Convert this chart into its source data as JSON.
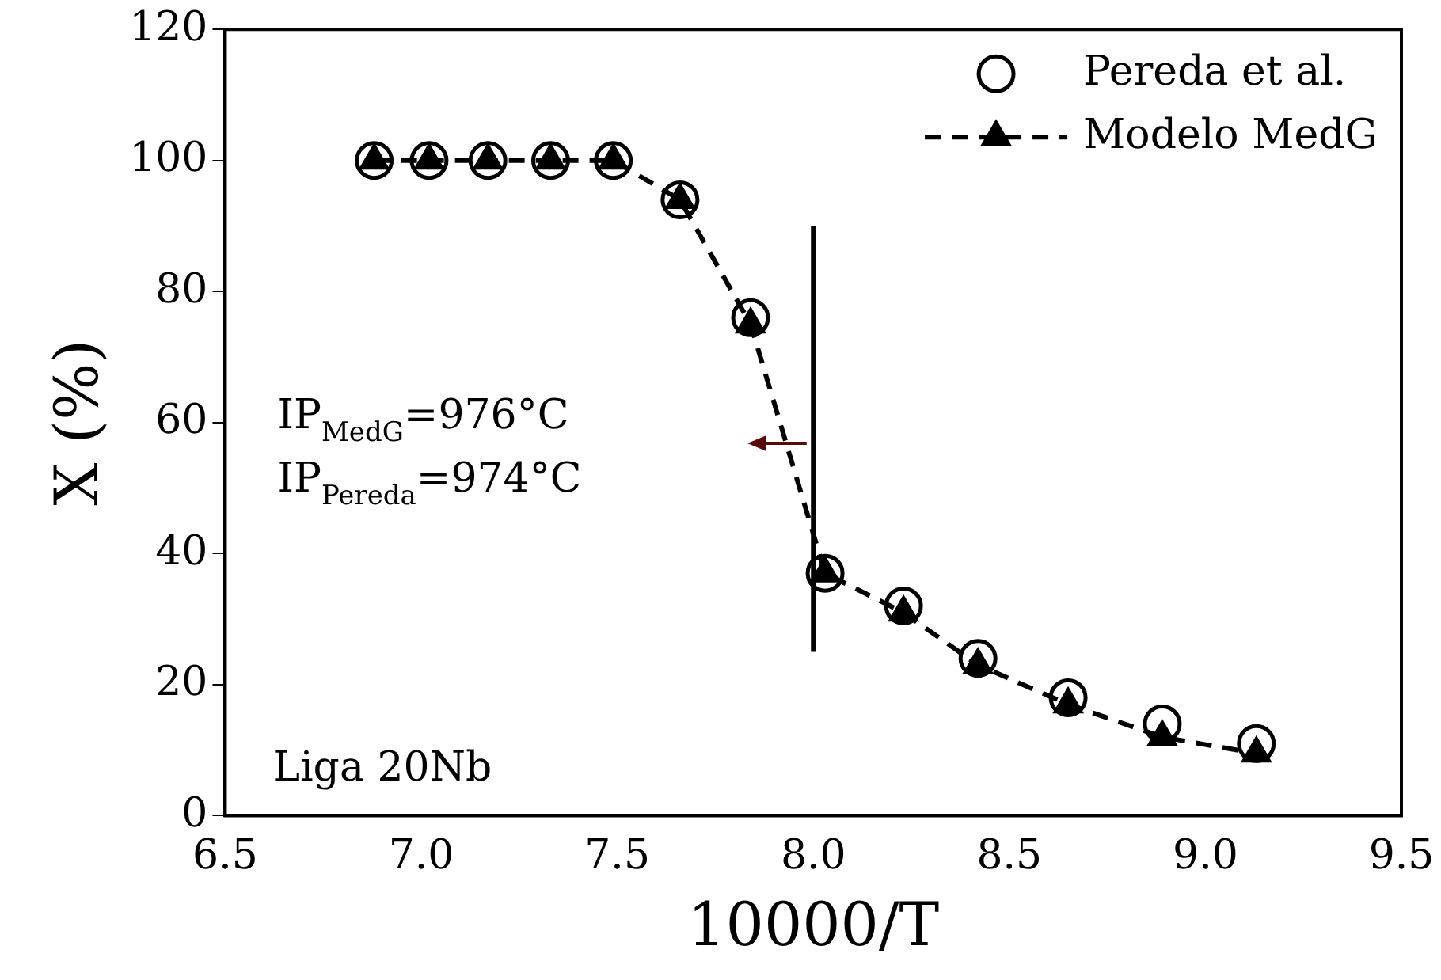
{
  "chart_data": {
    "type": "scatter",
    "xlabel": "10000/T",
    "ylabel": "X (%)",
    "xlim": [
      6.5,
      9.5
    ],
    "xticks": [
      {
        "value": 6.5,
        "label": "6.5"
      },
      {
        "value": 7,
        "label": "7.0"
      },
      {
        "value": 7.5,
        "label": "7.5"
      },
      {
        "value": 8,
        "label": "8.0"
      },
      {
        "value": 8.5,
        "label": "8.5"
      },
      {
        "value": 9,
        "label": "9.0"
      },
      {
        "value": 9.5,
        "label": "9.5"
      }
    ],
    "ylim": [
      0,
      120
    ],
    "yticks": [
      0,
      20,
      40,
      60,
      80,
      100,
      120
    ],
    "grid": false,
    "legend": "top right",
    "annotations": [
      "IP$_{MedG}$=976°C",
      "IP$_{Pereda}$=974°C",
      "Liga 20Nb"
    ],
    "series": [
      {
        "type": "scatter",
        "name": "Pereda et al.",
        "color": "#000000",
        "marker": "circle",
        "x": [
          6.88,
          7.02,
          7.17,
          7.33,
          7.49,
          7.66,
          7.84,
          8.03,
          8.23,
          8.42,
          8.65,
          8.89,
          9.13
        ],
        "values": [
          100,
          100,
          100,
          100,
          100,
          94,
          76,
          37,
          32,
          24,
          18,
          14,
          11
        ]
      },
      {
        "type": "line",
        "name": "Modelo MedG",
        "color": "#000000",
        "marker": "triangle",
        "line_style": "dashed",
        "x": [
          6.88,
          7.02,
          7.17,
          7.33,
          7.49,
          7.66,
          7.84,
          8.03,
          8.23,
          8.42,
          8.65,
          8.89,
          9.13
        ],
        "values": [
          100,
          100,
          100,
          100,
          100,
          94,
          75,
          37,
          31,
          23,
          17,
          12,
          9.5
        ]
      },
      {
        "type": "line",
        "color": "#000000",
        "marker": "none",
        "line_style": "solid",
        "x": [
          8,
          8
        ],
        "values": [
          25,
          90
        ]
      }
    ]
  }
}
